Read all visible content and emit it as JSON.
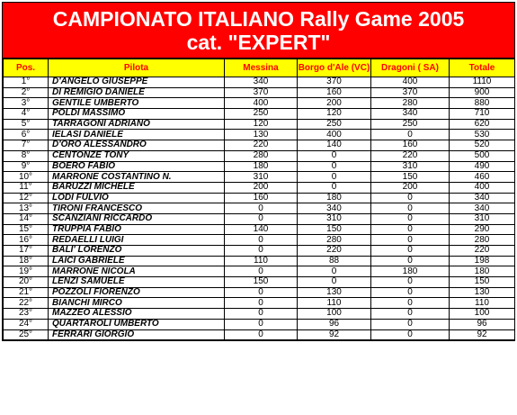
{
  "title_line1": "CAMPIONATO ITALIANO Rally Game 2005",
  "title_line2": "cat. \"EXPERT\"",
  "headers": [
    "Pos.",
    "Pilota",
    "Messina",
    "Borgo d'Ale (VC)",
    "Dragoni ( SA)",
    "Totale"
  ],
  "colors": {
    "banner": "#ff0000",
    "header_bg": "#ffff00",
    "header_text": "#ff0000"
  },
  "rows": [
    {
      "pos": "1°",
      "pilot": "D'ANGELO GIUSEPPE",
      "messina": "340",
      "borgo": "370",
      "dragoni": "400",
      "total": "1110"
    },
    {
      "pos": "2°",
      "pilot": "DI REMIGIO DANIELE",
      "messina": "370",
      "borgo": "160",
      "dragoni": "370",
      "total": "900"
    },
    {
      "pos": "3°",
      "pilot": "GENTILE UMBERTO",
      "messina": "400",
      "borgo": "200",
      "dragoni": "280",
      "total": "880"
    },
    {
      "pos": "4°",
      "pilot": "POLDI MASSIMO",
      "messina": "250",
      "borgo": "120",
      "dragoni": "340",
      "total": "710"
    },
    {
      "pos": "5°",
      "pilot": "TARRAGONI ADRIANO",
      "messina": "120",
      "borgo": "250",
      "dragoni": "250",
      "total": "620"
    },
    {
      "pos": "6°",
      "pilot": "IELASI DANIELE",
      "messina": "130",
      "borgo": "400",
      "dragoni": "0",
      "total": "530"
    },
    {
      "pos": "7°",
      "pilot": "D'ORO ALESSANDRO",
      "messina": "220",
      "borgo": "140",
      "dragoni": "160",
      "total": "520"
    },
    {
      "pos": "8°",
      "pilot": "CENTONZE TONY",
      "messina": "280",
      "borgo": "0",
      "dragoni": "220",
      "total": "500"
    },
    {
      "pos": "9°",
      "pilot": "BOERO FABIO",
      "messina": "180",
      "borgo": "0",
      "dragoni": "310",
      "total": "490"
    },
    {
      "pos": "10°",
      "pilot": "MARRONE COSTANTINO N.",
      "messina": "310",
      "borgo": "0",
      "dragoni": "150",
      "total": "460"
    },
    {
      "pos": "11°",
      "pilot": "BARUZZI MICHELE",
      "messina": "200",
      "borgo": "0",
      "dragoni": "200",
      "total": "400"
    },
    {
      "pos": "12°",
      "pilot": "LODI FULVIO",
      "messina": "160",
      "borgo": "180",
      "dragoni": "0",
      "total": "340"
    },
    {
      "pos": "13°",
      "pilot": "TIRONI FRANCESCO",
      "messina": "0",
      "borgo": "340",
      "dragoni": "0",
      "total": "340"
    },
    {
      "pos": "14°",
      "pilot": "SCANZIANI RICCARDO",
      "messina": "0",
      "borgo": "310",
      "dragoni": "0",
      "total": "310"
    },
    {
      "pos": "15°",
      "pilot": "TRUPPIA FABIO",
      "messina": "140",
      "borgo": "150",
      "dragoni": "0",
      "total": "290"
    },
    {
      "pos": "16°",
      "pilot": "REDAELLI LUIGI",
      "messina": "0",
      "borgo": "280",
      "dragoni": "0",
      "total": "280"
    },
    {
      "pos": "17°",
      "pilot": "BALI' LORENZO",
      "messina": "0",
      "borgo": "220",
      "dragoni": "0",
      "total": "220"
    },
    {
      "pos": "18°",
      "pilot": "LAICI GABRIELE",
      "messina": "110",
      "borgo": "88",
      "dragoni": "0",
      "total": "198"
    },
    {
      "pos": "19°",
      "pilot": "MARRONE NICOLA",
      "messina": "0",
      "borgo": "0",
      "dragoni": "180",
      "total": "180"
    },
    {
      "pos": "20°",
      "pilot": "LENZI SAMUELE",
      "messina": "150",
      "borgo": "0",
      "dragoni": "0",
      "total": "150"
    },
    {
      "pos": "21°",
      "pilot": "POZZOLI FIORENZO",
      "messina": "0",
      "borgo": "130",
      "dragoni": "0",
      "total": "130"
    },
    {
      "pos": "22°",
      "pilot": "BIANCHI MIRCO",
      "messina": "0",
      "borgo": "110",
      "dragoni": "0",
      "total": "110"
    },
    {
      "pos": "23°",
      "pilot": "MAZZEO ALESSIO",
      "messina": "0",
      "borgo": "100",
      "dragoni": "0",
      "total": "100"
    },
    {
      "pos": "24°",
      "pilot": "QUARTAROLI UMBERTO",
      "messina": "0",
      "borgo": "96",
      "dragoni": "0",
      "total": "96"
    },
    {
      "pos": "25°",
      "pilot": "FERRARI GIORGIO",
      "messina": "0",
      "borgo": "92",
      "dragoni": "0",
      "total": "92"
    }
  ]
}
